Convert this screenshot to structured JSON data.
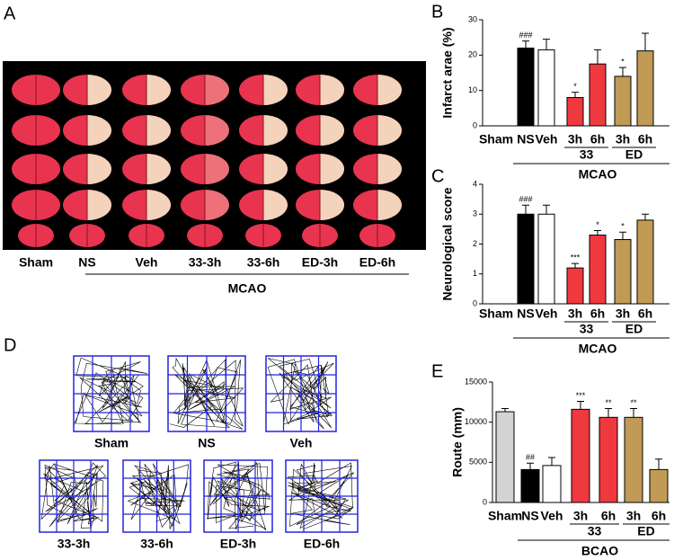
{
  "panels": {
    "A": {
      "letter": "A",
      "labels": [
        "Sham",
        "NS",
        "Veh",
        "33-3h",
        "33-6h",
        "ED-3h",
        "ED-6h"
      ],
      "condition": "MCAO"
    },
    "D": {
      "letter": "D",
      "labels": [
        "Sham",
        "NS",
        "Veh",
        "33-3h",
        "33-6h",
        "ED-3h",
        "ED-6h"
      ]
    }
  },
  "chart_data": [
    {
      "type": "bar",
      "letter": "B",
      "y_label": "Infarct arae (%)",
      "categories": [
        "Sham",
        "NS",
        "Veh",
        "3h",
        "6h",
        "3h",
        "6h"
      ],
      "values": [
        0,
        22,
        21.5,
        8,
        17.5,
        14,
        21.2
      ],
      "errors": [
        0,
        2,
        3,
        1.5,
        4,
        2.5,
        5
      ],
      "colors": [
        "#000000",
        "#000000",
        "#ffffff",
        "#f0393f",
        "#f0393f",
        "#c19a55",
        "#c19a55"
      ],
      "significance": [
        null,
        "###",
        null,
        "*",
        null,
        "*",
        null
      ],
      "group_labels": [
        "33",
        "ED"
      ],
      "condition": "MCAO",
      "ylim": [
        0,
        30
      ],
      "yticks": [
        0,
        10,
        20,
        30
      ]
    },
    {
      "type": "bar",
      "letter": "C",
      "y_label": "Neurological score",
      "categories": [
        "Sham",
        "NS",
        "Veh",
        "3h",
        "6h",
        "3h",
        "6h"
      ],
      "values": [
        0,
        3.0,
        3.0,
        1.2,
        2.3,
        2.15,
        2.8
      ],
      "errors": [
        0,
        0.3,
        0.3,
        0.15,
        0.15,
        0.25,
        0.2
      ],
      "colors": [
        "#000000",
        "#000000",
        "#ffffff",
        "#f0393f",
        "#f0393f",
        "#c19a55",
        "#c19a55"
      ],
      "significance": [
        null,
        "###",
        null,
        "***",
        "*",
        "*",
        null
      ],
      "group_labels": [
        "33",
        "ED"
      ],
      "condition": "MCAO",
      "ylim": [
        0,
        4
      ],
      "yticks": [
        0,
        1,
        2,
        3,
        4
      ]
    },
    {
      "type": "bar",
      "letter": "E",
      "y_label": "Route (mm)",
      "categories": [
        "Sham",
        "NS",
        "Veh",
        "3h",
        "6h",
        "3h",
        "6h"
      ],
      "values": [
        11300,
        4100,
        4600,
        11600,
        10600,
        10600,
        4100
      ],
      "errors": [
        400,
        800,
        1000,
        1000,
        1100,
        1100,
        1300
      ],
      "colors": [
        "#d3d3d3",
        "#000000",
        "#ffffff",
        "#f0393f",
        "#f0393f",
        "#c19a55",
        "#c19a55"
      ],
      "significance": [
        null,
        "##",
        null,
        "***",
        "**",
        "**",
        null
      ],
      "group_labels": [
        "33",
        "ED"
      ],
      "condition": "BCAO",
      "ylim": [
        0,
        15000
      ],
      "yticks": [
        0,
        5000,
        10000,
        15000
      ]
    }
  ]
}
